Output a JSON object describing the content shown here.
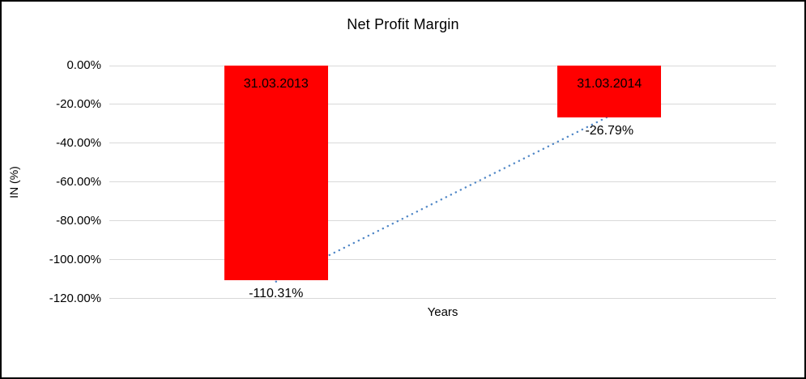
{
  "chart_data": {
    "type": "bar",
    "title": "Net Profit Margin",
    "xlabel": "Years",
    "ylabel": "IN (%)",
    "categories": [
      "31.03.2013",
      "31.03.2014"
    ],
    "values": [
      -110.31,
      -26.79
    ],
    "value_labels": [
      "-110.31%",
      "-26.79%"
    ],
    "y_tick_values": [
      0,
      -20,
      -40,
      -60,
      -80,
      -100,
      -120
    ],
    "y_tick_labels": [
      "0.00%",
      "-20.00%",
      "-40.00%",
      "-60.00%",
      "-80.00%",
      "-100.00%",
      "-120.00%"
    ],
    "ylim": [
      -120,
      0
    ],
    "grid": true,
    "legend_position": "none",
    "bar_color": "#ff0000",
    "label_color": "#000000",
    "gridline_color": "#d9d9d9",
    "trendline": {
      "style": "dotted",
      "color": "#4f86c6",
      "from_value": -110.31,
      "to_value": -26.79
    }
  }
}
